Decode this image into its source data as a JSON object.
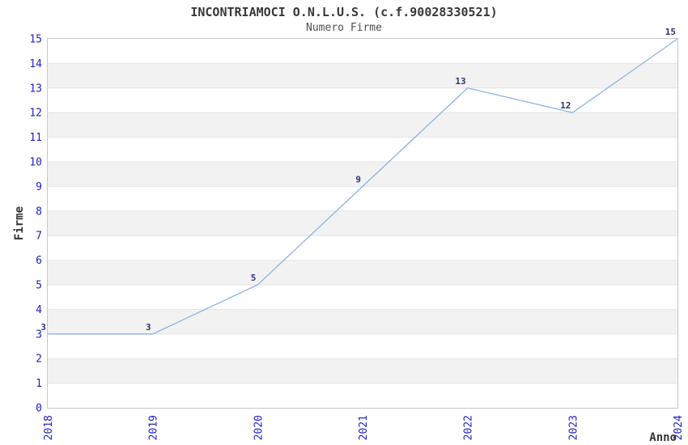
{
  "header": {
    "title": "INCONTRIAMOCI O.N.L.U.S. (c.f.90028330521)",
    "subtitle": "Numero Firme"
  },
  "chart_data": {
    "type": "line",
    "title": "INCONTRIAMOCI O.N.L.U.S. (c.f.90028330521)",
    "subtitle": "Numero Firme",
    "series_name": "Numero Firme",
    "x": [
      2018,
      2019,
      2020,
      2021,
      2022,
      2023,
      2024
    ],
    "values": [
      3,
      3,
      5,
      9,
      13,
      12,
      15
    ],
    "xlabel": "Anno",
    "ylabel": "Firme",
    "ylim": [
      0,
      15
    ],
    "y_tick_step": 1,
    "grid": "horizontal-alternating-bands",
    "legend": "none",
    "x_tick_rotation_deg": -90,
    "colors": {
      "line": "#89b3e3",
      "tick_label": "#2222cc",
      "data_label": "#30307a",
      "band": "#f2f2f2",
      "gridline": "#e4e4e4",
      "plot_border": "#c9c9c9",
      "title_text": "#383838",
      "subtitle_text": "#4f4f4f",
      "axis_title_text": "#333333",
      "background": "#ffffff"
    }
  }
}
